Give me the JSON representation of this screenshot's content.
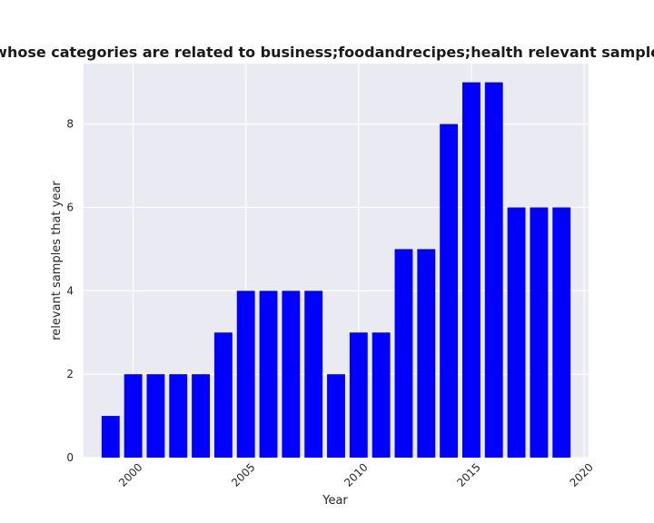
{
  "chart_data": {
    "type": "bar",
    "title": "Number of privacy policies whose categories are related to business;foodandrecipes;health relevant samples that year in privacy policies",
    "xlabel": "Year",
    "ylabel": "relevant samples that year",
    "x": [
      1999,
      2000,
      2001,
      2002,
      2003,
      2004,
      2005,
      2006,
      2007,
      2008,
      2009,
      2010,
      2011,
      2012,
      2013,
      2014,
      2015,
      2016,
      2017,
      2018,
      2019
    ],
    "values": [
      1,
      2,
      2,
      2,
      2,
      3,
      4,
      4,
      4,
      4,
      2,
      3,
      3,
      5,
      5,
      8,
      9,
      9,
      6,
      6,
      6
    ],
    "xlim": [
      1997.8,
      2020.2
    ],
    "ylim": [
      0,
      9.45
    ],
    "xticks": [
      2000,
      2005,
      2010,
      2015,
      2020
    ],
    "yticks": [
      0,
      2,
      4,
      6,
      8
    ],
    "grid": true,
    "bar_color": "#0000ff",
    "background": "#eaeaf2"
  }
}
